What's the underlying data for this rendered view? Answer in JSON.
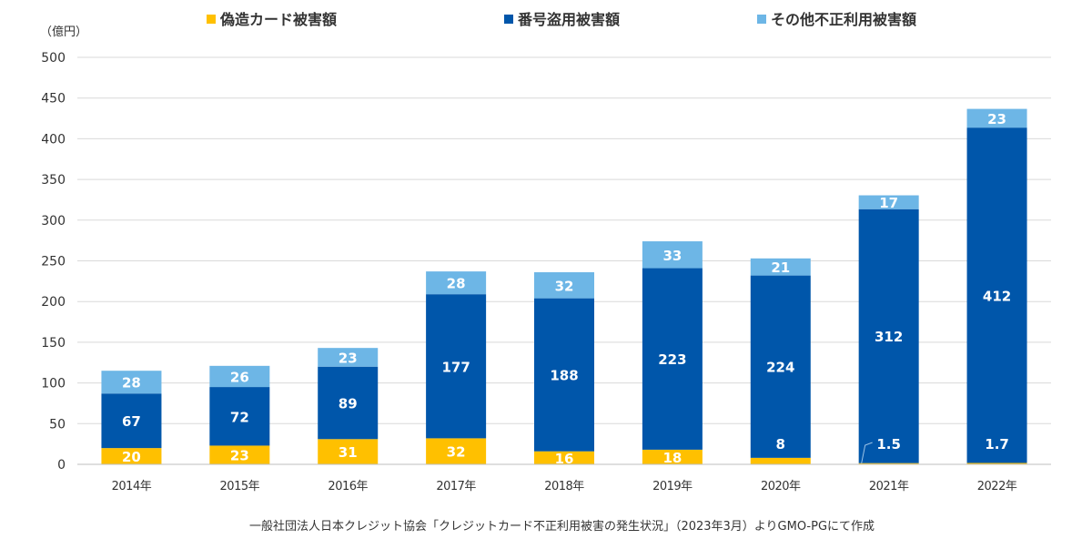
{
  "chart_data": {
    "type": "bar",
    "stacked": true,
    "y_unit": "（億円）",
    "categories": [
      "2014年",
      "2015年",
      "2016年",
      "2017年",
      "2018年",
      "2019年",
      "2020年",
      "2021年",
      "2022年"
    ],
    "series": [
      {
        "name": "偽造カード被害額",
        "color": "#ffc000",
        "values": [
          20,
          23,
          31,
          32,
          16,
          18,
          8,
          1.5,
          1.7
        ],
        "labels": [
          "20",
          "23",
          "31",
          "32",
          "16",
          "18",
          "8",
          "1.5",
          "1.7"
        ]
      },
      {
        "name": "番号盗用被害額",
        "color": "#0056aa",
        "values": [
          67,
          72,
          89,
          177,
          188,
          223,
          224,
          312,
          412
        ],
        "labels": [
          "67",
          "72",
          "89",
          "177",
          "188",
          "223",
          "224",
          "312",
          "412"
        ]
      },
      {
        "name": "その他不正利用被害額",
        "color": "#6db6e6",
        "values": [
          28,
          26,
          23,
          28,
          32,
          33,
          21,
          17,
          23
        ],
        "labels": [
          "28",
          "26",
          "23",
          "28",
          "32",
          "33",
          "21",
          "17",
          "23"
        ]
      }
    ],
    "ylim": [
      0,
      500
    ],
    "yticks": [
      0,
      50,
      100,
      150,
      200,
      250,
      300,
      350,
      400,
      450,
      500
    ],
    "grid": true,
    "legend_position": "top"
  },
  "source_note": "一般社団法人日本クレジット協会「クレジットカード不正利用被害の発生状況」（2023年3月）よりGMO-PGにて作成"
}
